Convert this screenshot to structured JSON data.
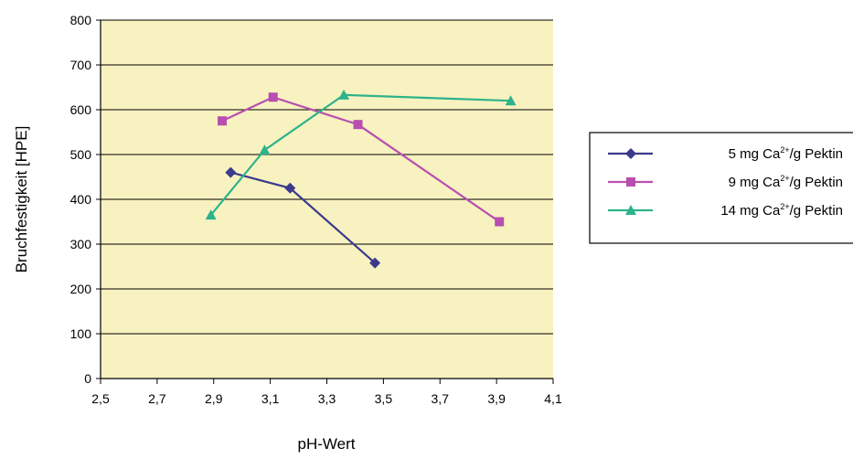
{
  "chart_data": {
    "type": "line",
    "title": "",
    "xlabel": "pH-Wert",
    "ylabel": "Bruchfestigkeit [HPE]",
    "xlim": [
      2.5,
      4.1
    ],
    "ylim": [
      0,
      800
    ],
    "xticks": [
      "2,5",
      "2,7",
      "2,9",
      "3,1",
      "3,3",
      "3,5",
      "3,7",
      "3,9",
      "4,1"
    ],
    "yticks": [
      "0",
      "100",
      "200",
      "300",
      "400",
      "500",
      "600",
      "700",
      "800"
    ],
    "grid": "horizontal",
    "legend_position": "right",
    "plot_background": "#f8f2c0",
    "series": [
      {
        "name_prefix": "5 mg Ca",
        "name_sup": "2+",
        "name_suffix": "/g Pektin",
        "color": "#3b3a8c",
        "marker": "diamond",
        "points": [
          [
            2.96,
            460
          ],
          [
            3.17,
            425
          ],
          [
            3.47,
            258
          ]
        ]
      },
      {
        "name_prefix": "9 mg Ca",
        "name_sup": "2+",
        "name_suffix": "/g Pektin",
        "color": "#b84fb0",
        "marker": "square",
        "points": [
          [
            2.93,
            575
          ],
          [
            3.11,
            628
          ],
          [
            3.41,
            567
          ],
          [
            3.91,
            350
          ]
        ]
      },
      {
        "name_prefix": "14 mg Ca",
        "name_sup": "2+",
        "name_suffix": "/g Pektin",
        "color": "#2db38a",
        "marker": "triangle",
        "points": [
          [
            2.89,
            365
          ],
          [
            3.08,
            510
          ],
          [
            3.36,
            633
          ],
          [
            3.95,
            620
          ]
        ]
      }
    ]
  }
}
